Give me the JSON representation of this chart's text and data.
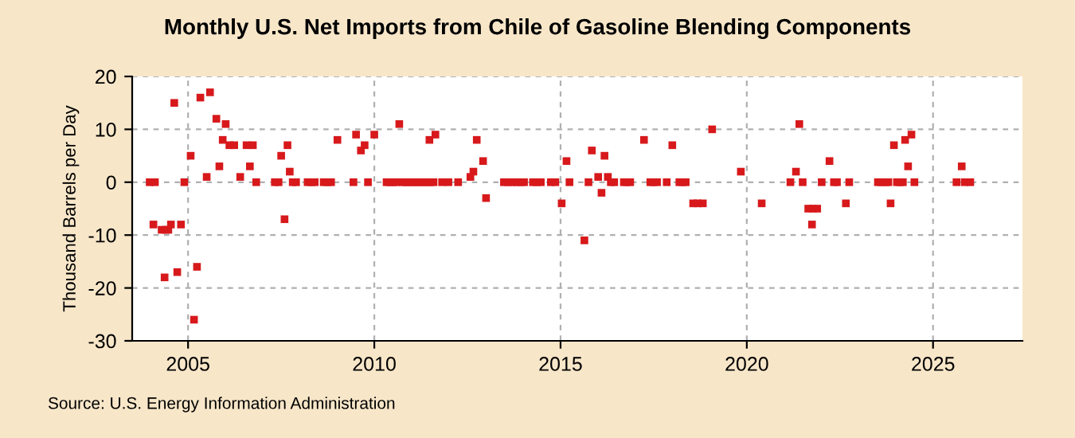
{
  "chart_data": {
    "type": "scatter",
    "title": "Monthly U.S. Net Imports from Chile of Gasoline Blending Components",
    "ylabel": "Thousand Barrels per Day",
    "annotations": [
      "Source: U.S. Energy Information Administration"
    ],
    "x": [
      2003.97,
      2004.11,
      2004.07,
      2004.29,
      2004.4,
      2004.47,
      2004.37,
      2004.54,
      2004.63,
      2004.71,
      2004.81,
      2004.9,
      2005.07,
      2005.16,
      2005.24,
      2005.33,
      2005.5,
      2005.59,
      2005.76,
      2005.84,
      2005.93,
      2006.01,
      2006.11,
      2006.24,
      2006.4,
      2006.57,
      2006.66,
      2006.74,
      2006.83,
      2007.33,
      2007.43,
      2007.5,
      2007.59,
      2007.67,
      2007.73,
      2007.81,
      2007.9,
      2008.21,
      2008.31,
      2008.4,
      2008.64,
      2008.74,
      2008.84,
      2009.01,
      2009.44,
      2009.51,
      2009.64,
      2009.74,
      2009.83,
      2010.0,
      2010.33,
      2010.41,
      2010.5,
      2010.59,
      2010.67,
      2010.76,
      2010.84,
      2010.92,
      2011.0,
      2011.09,
      2011.17,
      2011.26,
      2011.34,
      2011.42,
      2011.5,
      2011.59,
      2011.48,
      2011.64,
      2011.82,
      2011.99,
      2012.25,
      2012.58,
      2012.66,
      2012.75,
      2012.92,
      2013.0,
      2013.48,
      2013.59,
      2013.7,
      2013.82,
      2013.93,
      2014.02,
      2014.26,
      2014.36,
      2014.47,
      2014.74,
      2014.86,
      2015.03,
      2015.16,
      2015.24,
      2015.64,
      2015.75,
      2015.84,
      2016.01,
      2016.1,
      2016.18,
      2016.27,
      2016.35,
      2016.44,
      2016.7,
      2016.78,
      2016.87,
      2017.24,
      2017.41,
      2017.49,
      2017.59,
      2017.85,
      2018.0,
      2018.19,
      2018.28,
      2018.36,
      2018.56,
      2018.68,
      2018.82,
      2019.07,
      2019.84,
      2020.4,
      2021.17,
      2021.32,
      2021.41,
      2021.5,
      2021.65,
      2021.77,
      2021.89,
      2021.75,
      2022.01,
      2022.22,
      2022.34,
      2022.42,
      2022.66,
      2022.75,
      2023.52,
      2023.62,
      2023.72,
      2023.8,
      2023.86,
      2023.95,
      2024.03,
      2024.12,
      2024.19,
      2024.25,
      2024.33,
      2024.42,
      2024.5,
      2025.63,
      2025.77,
      2025.85,
      2026.0
    ],
    "series": [
      {
        "color": "#d7191c",
        "values": [
          0,
          0,
          -8,
          -9,
          -9,
          -9,
          -18,
          -8,
          15,
          -17,
          -8,
          0,
          5,
          -26,
          -16,
          16,
          1,
          17,
          12,
          3,
          8,
          11,
          7,
          7,
          1,
          7,
          3,
          7,
          0,
          0,
          0,
          5,
          -7,
          7,
          2,
          0,
          0,
          0,
          0,
          0,
          0,
          0,
          0,
          8,
          0,
          9,
          6,
          7,
          0,
          9,
          0,
          0,
          0,
          0,
          11,
          0,
          0,
          0,
          0,
          0,
          0,
          0,
          0,
          0,
          0,
          0,
          8,
          9,
          0,
          0,
          0,
          1,
          2,
          8,
          4,
          -3,
          0,
          0,
          0,
          0,
          0,
          0,
          0,
          0,
          0,
          0,
          0,
          -4,
          4,
          0,
          -11,
          0,
          6,
          1,
          -2,
          5,
          1,
          0,
          0,
          0,
          0,
          0,
          8,
          0,
          0,
          0,
          0,
          7,
          0,
          0,
          0,
          -4,
          -4,
          -4,
          10,
          2,
          -4,
          0,
          2,
          11,
          0,
          -5,
          -5,
          -5,
          -8,
          0,
          4,
          0,
          0,
          -4,
          0,
          0,
          0,
          0,
          0,
          -4,
          7,
          0,
          0,
          0,
          8,
          3,
          9,
          0,
          0,
          3,
          0,
          0
        ]
      }
    ],
    "xlim": [
      2003.5,
      2027.4
    ],
    "xticks": [
      2005,
      2010,
      2015,
      2020,
      2025
    ],
    "ylim": [
      -30,
      20
    ],
    "yticks": [
      -30,
      -20,
      -10,
      0,
      10,
      20
    ],
    "grid": true,
    "marker": "square",
    "legend": false
  }
}
